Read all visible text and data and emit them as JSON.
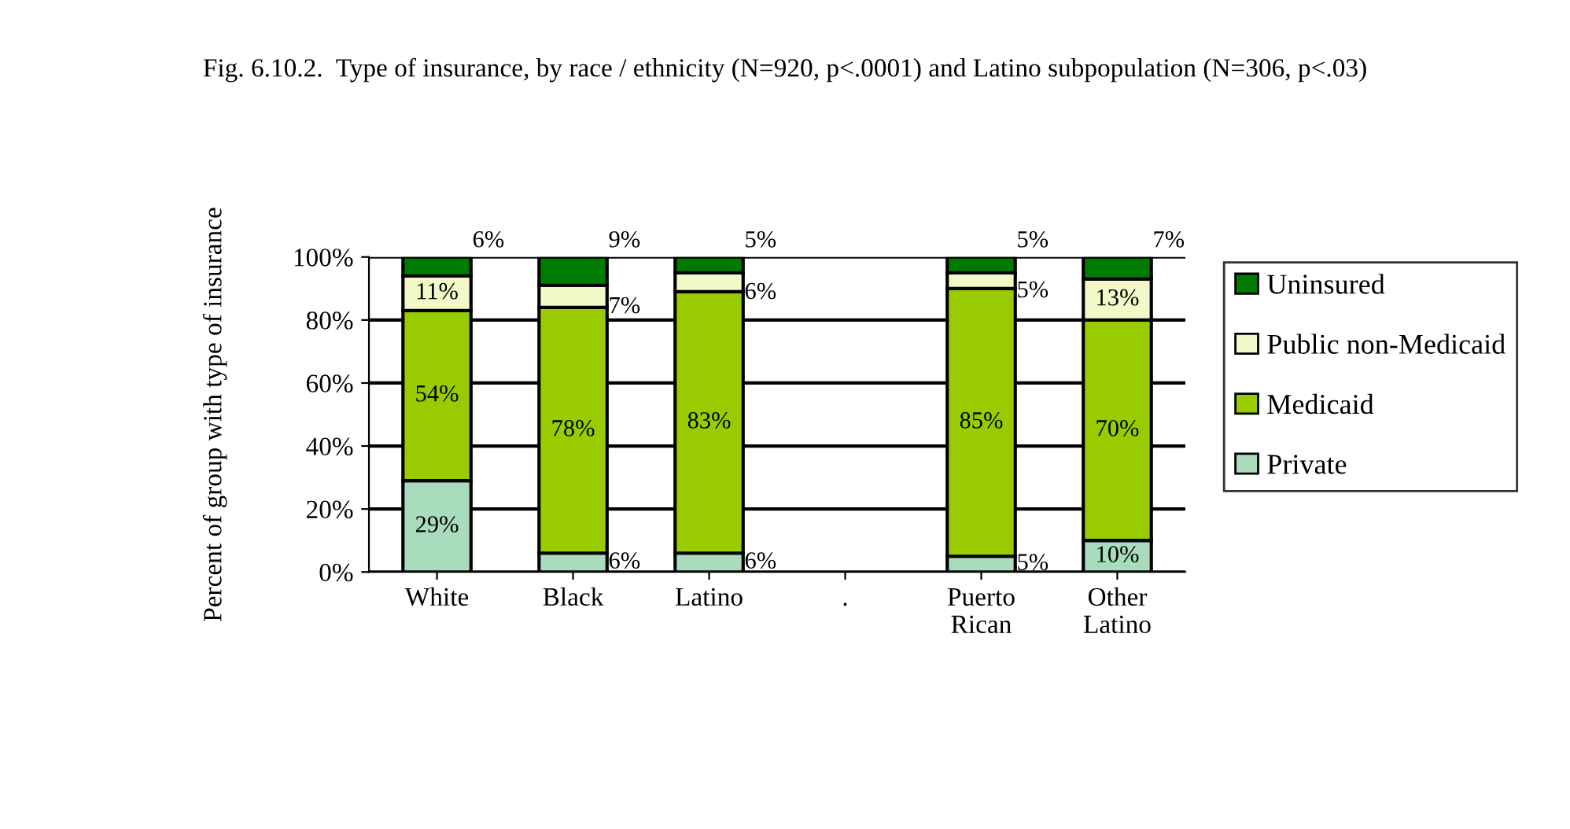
{
  "chart_data": {
    "type": "bar",
    "stacked": true,
    "title": "Fig. 6.10.2.  Type of insurance, by race / ethnicity (N=920, p<.0001) and Latino subpopulation (N=306, p<.03)",
    "ylabel": "Percent of group with type of insurance",
    "categories": [
      "White",
      "Black",
      "Latino",
      ".",
      "Puerto\nRican",
      "Other\nLatino"
    ],
    "series": [
      {
        "name": "Private",
        "color": "#a8dcbc",
        "values": [
          29,
          6,
          6,
          null,
          5,
          10
        ],
        "value_labels": [
          "29%",
          "6%",
          "6%",
          null,
          "5%",
          "10%"
        ]
      },
      {
        "name": "Medicaid",
        "color": "#99cc00",
        "values": [
          54,
          78,
          83,
          null,
          85,
          70
        ],
        "value_labels": [
          "54%",
          "78%",
          "83%",
          null,
          "85%",
          "70%"
        ]
      },
      {
        "name": "Public non-Medicaid",
        "color": "#f2f8c8",
        "values": [
          11,
          7,
          6,
          null,
          5,
          13
        ],
        "value_labels": [
          "11%",
          "7%",
          "6%",
          null,
          "5%",
          "13%"
        ]
      },
      {
        "name": "Uninsured",
        "color": "#007a00",
        "values": [
          6,
          9,
          5,
          null,
          5,
          7
        ],
        "value_labels": [
          "6%",
          "9%",
          "5%",
          null,
          "5%",
          "7%"
        ]
      }
    ],
    "ylim": [
      0,
      100
    ],
    "yticks": [
      {
        "value": 0,
        "label": "0%"
      },
      {
        "value": 20,
        "label": "20%"
      },
      {
        "value": 40,
        "label": "40%"
      },
      {
        "value": 60,
        "label": "60%"
      },
      {
        "value": 80,
        "label": "80%"
      },
      {
        "value": 100,
        "label": "100%"
      }
    ],
    "grid": "y",
    "legend": "right"
  }
}
